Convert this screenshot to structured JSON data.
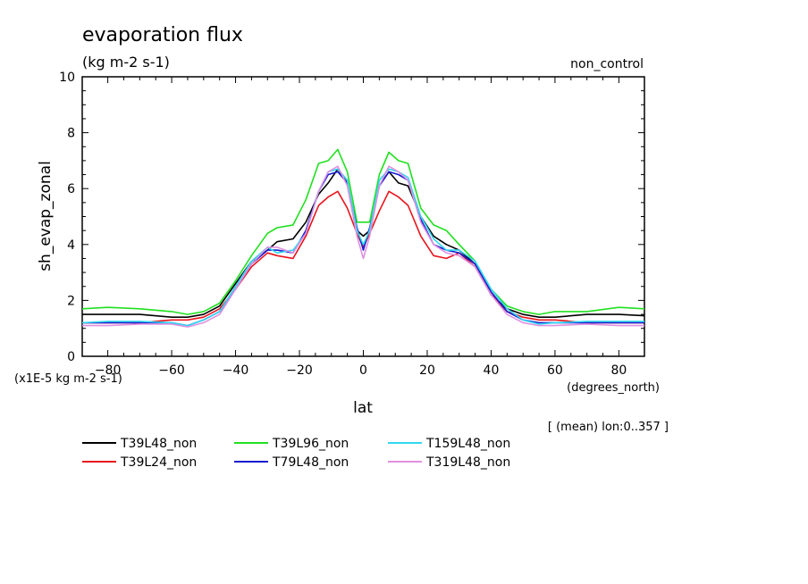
{
  "title": "evaporation flux",
  "units": "(kg m-2 s-1)",
  "experiment": "non_control",
  "ylabel": "sh_evap_zonal",
  "xlabel": "lat",
  "x_units": "(degrees_north)",
  "y_scale_note": "(x1E-5 kg m-2 s-1)",
  "mean_note": "[ (mean) lon:0..357 ]",
  "chart_data": {
    "type": "line",
    "title": "evaporation flux",
    "xlabel": "lat",
    "ylabel": "sh_evap_zonal",
    "xlim": [
      -88,
      88
    ],
    "ylim": [
      0,
      10
    ],
    "x_ticks": [
      -80,
      -60,
      -40,
      -20,
      0,
      20,
      40,
      60,
      80
    ],
    "y_ticks": [
      0,
      2,
      4,
      6,
      8,
      10
    ],
    "grid": false,
    "legend_position": "bottom",
    "series": [
      {
        "name": "T39L48_non",
        "color": "#000000",
        "x": [
          -88,
          -80,
          -70,
          -60,
          -55,
          -50,
          -45,
          -40,
          -35,
          -30,
          -27,
          -22,
          -18,
          -14,
          -11,
          -8,
          -5,
          -2,
          0,
          2,
          5,
          8,
          11,
          14,
          18,
          22,
          26,
          30,
          35,
          40,
          45,
          50,
          55,
          60,
          70,
          80,
          88
        ],
        "y": [
          1.5,
          1.5,
          1.5,
          1.4,
          1.4,
          1.5,
          1.8,
          2.6,
          3.4,
          3.8,
          4.1,
          4.2,
          4.8,
          5.8,
          6.2,
          6.7,
          6.2,
          4.5,
          4.3,
          4.5,
          6.1,
          6.6,
          6.2,
          6.1,
          5.0,
          4.3,
          4.0,
          3.8,
          3.3,
          2.2,
          1.7,
          1.5,
          1.4,
          1.4,
          1.5,
          1.5,
          1.45
        ]
      },
      {
        "name": "T39L24_non",
        "color": "#e8141c",
        "x": [
          -88,
          -80,
          -70,
          -60,
          -55,
          -50,
          -45,
          -40,
          -35,
          -30,
          -27,
          -22,
          -18,
          -14,
          -11,
          -8,
          -5,
          -2,
          0,
          2,
          5,
          8,
          11,
          14,
          18,
          22,
          26,
          30,
          35,
          40,
          45,
          50,
          55,
          60,
          70,
          80,
          88
        ],
        "y": [
          1.2,
          1.2,
          1.2,
          1.3,
          1.3,
          1.4,
          1.7,
          2.4,
          3.2,
          3.7,
          3.6,
          3.5,
          4.3,
          5.4,
          5.7,
          5.9,
          5.3,
          4.4,
          3.9,
          4.4,
          5.2,
          5.9,
          5.7,
          5.4,
          4.3,
          3.6,
          3.5,
          3.7,
          3.2,
          2.2,
          1.6,
          1.4,
          1.3,
          1.3,
          1.2,
          1.2,
          1.2
        ]
      },
      {
        "name": "T39L96_non",
        "color": "#20e020",
        "x": [
          -88,
          -80,
          -70,
          -60,
          -55,
          -50,
          -45,
          -40,
          -35,
          -30,
          -27,
          -22,
          -18,
          -14,
          -11,
          -8,
          -5,
          -2,
          0,
          2,
          5,
          8,
          11,
          14,
          18,
          22,
          26,
          30,
          35,
          40,
          45,
          50,
          55,
          60,
          70,
          80,
          88
        ],
        "y": [
          1.7,
          1.75,
          1.7,
          1.6,
          1.5,
          1.6,
          1.9,
          2.7,
          3.6,
          4.4,
          4.6,
          4.7,
          5.6,
          6.9,
          7.0,
          7.4,
          6.6,
          4.8,
          4.8,
          4.8,
          6.5,
          7.3,
          7.0,
          6.9,
          5.3,
          4.7,
          4.5,
          4.0,
          3.4,
          2.4,
          1.8,
          1.6,
          1.5,
          1.6,
          1.6,
          1.75,
          1.7
        ]
      },
      {
        "name": "T79L48_non",
        "color": "#1a1ad0",
        "x": [
          -88,
          -80,
          -70,
          -60,
          -55,
          -50,
          -45,
          -40,
          -35,
          -30,
          -27,
          -22,
          -18,
          -14,
          -11,
          -8,
          -5,
          -2,
          0,
          2,
          5,
          8,
          11,
          14,
          18,
          22,
          26,
          30,
          35,
          40,
          45,
          50,
          55,
          60,
          70,
          80,
          88
        ],
        "y": [
          1.2,
          1.2,
          1.2,
          1.2,
          1.1,
          1.3,
          1.6,
          2.4,
          3.3,
          3.8,
          3.8,
          3.7,
          4.5,
          5.9,
          6.5,
          6.6,
          6.2,
          4.6,
          3.8,
          4.6,
          6.1,
          6.6,
          6.5,
          6.3,
          4.9,
          4.0,
          3.8,
          3.7,
          3.3,
          2.3,
          1.6,
          1.3,
          1.2,
          1.2,
          1.2,
          1.2,
          1.2
        ]
      },
      {
        "name": "T159L48_non",
        "color": "#30d8f0",
        "x": [
          -88,
          -80,
          -70,
          -60,
          -55,
          -50,
          -45,
          -40,
          -35,
          -30,
          -27,
          -22,
          -18,
          -14,
          -11,
          -8,
          -5,
          -2,
          0,
          2,
          5,
          8,
          11,
          14,
          18,
          22,
          26,
          30,
          35,
          40,
          45,
          50,
          55,
          60,
          70,
          80,
          88
        ],
        "y": [
          1.2,
          1.25,
          1.25,
          1.2,
          1.1,
          1.3,
          1.6,
          2.5,
          3.4,
          3.9,
          3.7,
          3.8,
          4.4,
          5.9,
          6.6,
          6.7,
          6.3,
          4.5,
          4.0,
          4.5,
          6.3,
          6.7,
          6.6,
          6.4,
          5.0,
          4.2,
          3.8,
          3.8,
          3.4,
          2.4,
          1.7,
          1.3,
          1.15,
          1.2,
          1.25,
          1.25,
          1.25
        ]
      },
      {
        "name": "T319L48_non",
        "color": "#e090e0",
        "x": [
          -88,
          -80,
          -70,
          -60,
          -55,
          -50,
          -45,
          -40,
          -35,
          -30,
          -27,
          -22,
          -18,
          -14,
          -11,
          -8,
          -5,
          -2,
          0,
          2,
          5,
          8,
          11,
          14,
          18,
          22,
          26,
          30,
          35,
          40,
          45,
          50,
          55,
          60,
          70,
          80,
          88
        ],
        "y": [
          1.1,
          1.1,
          1.15,
          1.15,
          1.05,
          1.2,
          1.5,
          2.4,
          3.3,
          3.9,
          3.9,
          3.7,
          4.4,
          5.9,
          6.6,
          6.8,
          6.1,
          4.3,
          3.5,
          4.3,
          6.1,
          6.8,
          6.6,
          6.3,
          4.8,
          4.0,
          3.7,
          3.6,
          3.2,
          2.2,
          1.5,
          1.2,
          1.1,
          1.1,
          1.15,
          1.1,
          1.1
        ]
      }
    ]
  }
}
